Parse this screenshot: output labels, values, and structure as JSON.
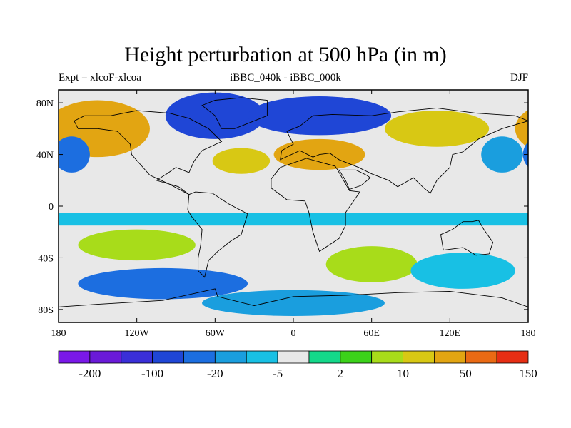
{
  "chart_data": {
    "type": "heatmap",
    "title": "Height perturbation at 500 hPa (in m)",
    "subtitle_left": "Expt = xlcoF-xlcoa",
    "subtitle_center": "iBBC_040k - iBBC_000k",
    "subtitle_right": "DJF",
    "x_ticks": [
      "180",
      "120W",
      "60W",
      "0",
      "60E",
      "120E",
      "180"
    ],
    "y_ticks": [
      "80N",
      "40N",
      "0",
      "40S",
      "80S"
    ],
    "xlim": [
      -180,
      180
    ],
    "ylim": [
      -90,
      90
    ],
    "colorbar": {
      "colors": [
        "#7a18e8",
        "#6a1ad8",
        "#3a2fd8",
        "#1f46d6",
        "#1c6ee0",
        "#1a9ede",
        "#18c0e4",
        "#e8e8e8",
        "#14d88a",
        "#3cd21a",
        "#a8dc1a",
        "#d8c814",
        "#e2a512",
        "#ea6a14",
        "#e62e14"
      ],
      "labels": [
        "-200",
        "-100",
        "-20",
        "-5",
        "2",
        "10",
        "50",
        "150"
      ]
    },
    "fields": [
      {
        "kind": "lat-band",
        "lat": [
          -90,
          90
        ],
        "color": "#e8e8e8"
      },
      {
        "kind": "lat-band",
        "lat": [
          18,
          30
        ],
        "color": "#e8e8e8"
      },
      {
        "kind": "lat-band",
        "lat": [
          -5,
          -15
        ],
        "color": "#18c0e4"
      },
      {
        "kind": "blob",
        "lon": -150,
        "lat": 60,
        "rx": 40,
        "ry": 22,
        "color": "#e2a512"
      },
      {
        "kind": "blob",
        "lon": -170,
        "lat": 40,
        "rx": 14,
        "ry": 14,
        "color": "#1c6ee0"
      },
      {
        "kind": "blob",
        "lon": -60,
        "lat": 70,
        "rx": 38,
        "ry": 18,
        "color": "#1f46d6"
      },
      {
        "kind": "blob",
        "lon": 20,
        "lat": 70,
        "rx": 55,
        "ry": 15,
        "color": "#1f46d6"
      },
      {
        "kind": "blob",
        "lon": -40,
        "lat": 35,
        "rx": 22,
        "ry": 10,
        "color": "#d8c814"
      },
      {
        "kind": "blob",
        "lon": 20,
        "lat": 40,
        "rx": 35,
        "ry": 12,
        "color": "#e2a512"
      },
      {
        "kind": "blob",
        "lon": 110,
        "lat": 60,
        "rx": 40,
        "ry": 14,
        "color": "#d8c814"
      },
      {
        "kind": "blob",
        "lon": 160,
        "lat": 40,
        "rx": 16,
        "ry": 14,
        "color": "#1a9ede"
      },
      {
        "kind": "blob",
        "lon": -120,
        "lat": -30,
        "rx": 45,
        "ry": 12,
        "color": "#a8dc1a"
      },
      {
        "kind": "blob",
        "lon": -100,
        "lat": -60,
        "rx": 65,
        "ry": 12,
        "color": "#1c6ee0"
      },
      {
        "kind": "blob",
        "lon": 60,
        "lat": -45,
        "rx": 35,
        "ry": 14,
        "color": "#a8dc1a"
      },
      {
        "kind": "blob",
        "lon": 0,
        "lat": -75,
        "rx": 70,
        "ry": 10,
        "color": "#1a9ede"
      },
      {
        "kind": "blob",
        "lon": 130,
        "lat": -50,
        "rx": 40,
        "ry": 14,
        "color": "#18c0e4"
      }
    ]
  }
}
